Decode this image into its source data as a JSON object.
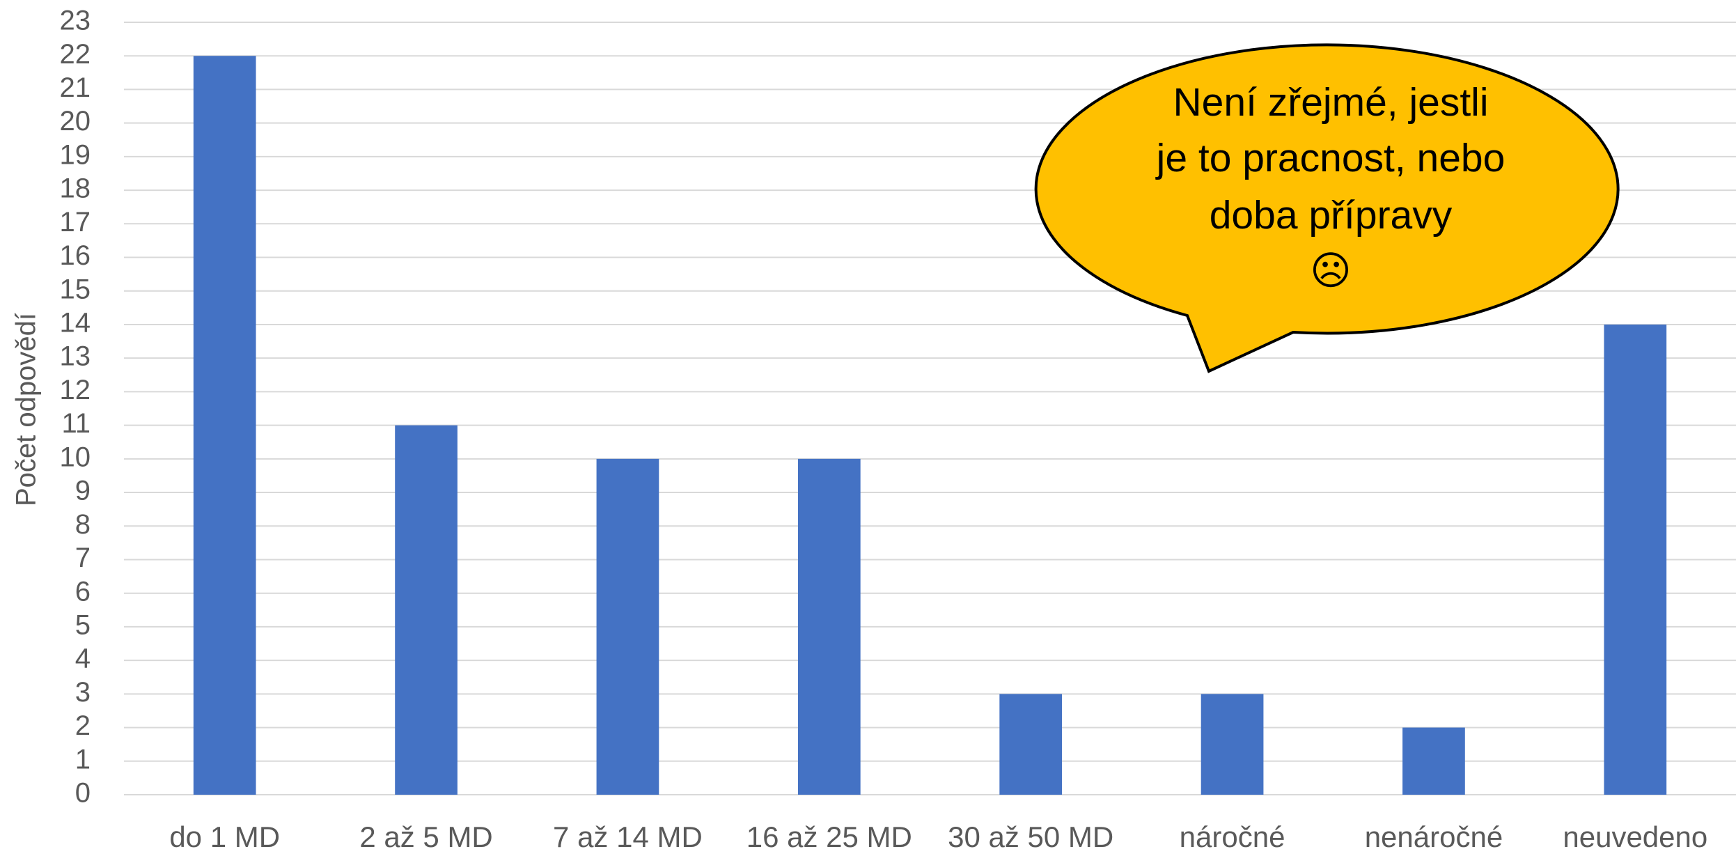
{
  "chart_data": {
    "type": "bar",
    "y_axis_label": "Počet odpovědí",
    "categories": [
      "do 1 MD",
      "2 až 5 MD",
      "7 až 14 MD",
      "16 až 25 MD",
      "30 až 50 MD",
      "náročné",
      "nenáročné",
      "neuvedeno"
    ],
    "values": [
      22,
      11,
      10,
      10,
      3,
      3,
      2,
      14
    ],
    "color": "#4472c4",
    "ylim": [
      0,
      23
    ],
    "yticks": [
      0,
      1,
      2,
      3,
      4,
      5,
      6,
      7,
      8,
      9,
      10,
      11,
      12,
      13,
      14,
      15,
      16,
      17,
      18,
      19,
      20,
      21,
      22,
      23
    ],
    "grid": true,
    "annotation": {
      "lines": [
        "Není zřejmé, jestli",
        "je to pracnost, nebo",
        "doba přípravy",
        "☹"
      ],
      "color": "#ffc000"
    }
  }
}
